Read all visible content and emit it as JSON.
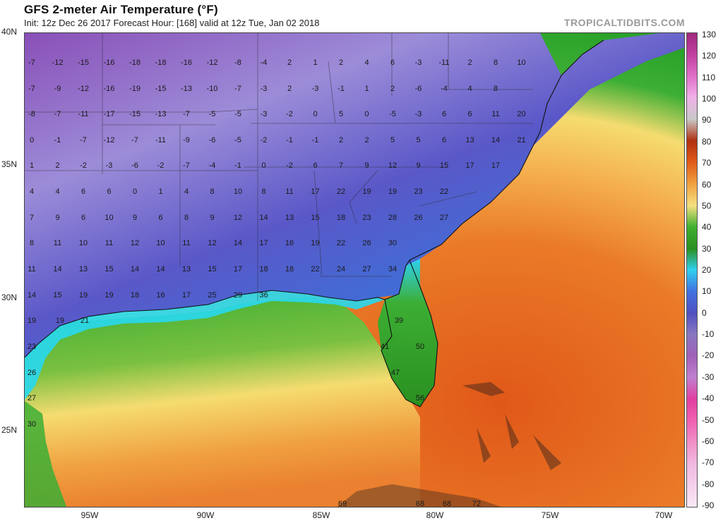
{
  "header": {
    "title": "GFS 2-meter Air Temperature (°F)",
    "subtitle": "Init: 12z Dec 26 2017   Forecast Hour: [168]   valid at 12z Tue, Jan 02 2018",
    "brand": "TROPICALTIDBITS.COM"
  },
  "axes": {
    "lat_labels": [
      "40N",
      "35N",
      "30N",
      "25N"
    ],
    "lon_labels": [
      "95W",
      "90W",
      "85W",
      "80W",
      "75W",
      "70W"
    ]
  },
  "colorbar": {
    "ticks": [
      "130",
      "120",
      "110",
      "100",
      "90",
      "80",
      "70",
      "60",
      "50",
      "40",
      "30",
      "20",
      "10",
      "0",
      "-10",
      "-20",
      "-30",
      "-40",
      "-50",
      "-60",
      "-70",
      "-80",
      "-90"
    ],
    "colors": [
      "#a0287e",
      "#c040a0",
      "#e070c8",
      "#f0b0e8",
      "#c8c8c8",
      "#b03010",
      "#e05a18",
      "#f0a040",
      "#f5e080",
      "#40b030",
      "#2a9020",
      "#30d0f0",
      "#4070e0",
      "#5050c0",
      "#8878c0",
      "#a060b8",
      "#c080d0",
      "#e040a0",
      "#f060b0",
      "#f090c8",
      "#f0b8e0",
      "#f4d0ea",
      "#f8e8f4"
    ]
  },
  "map_colors": {
    "ocean_warm": "#e05818",
    "ocean_orange": "#f09a38",
    "ocean_yellow": "#f5dc70",
    "ocean_green": "#3cae34",
    "coastal_cyan": "#28d8f0",
    "land_blue": "#3c70d8",
    "land_indigo": "#5a58c8",
    "land_lavender": "#9c8cd8",
    "land_purple": "#8a50b8",
    "land_pale": "#c0b8e8"
  },
  "temperature_grid": [
    [
      "-7",
      "-12",
      "-15",
      "-16",
      "-18",
      "-18",
      "-16",
      "-12",
      "-8",
      "-4",
      "2",
      "1",
      "2",
      "4",
      "6",
      "-3",
      "-11",
      "2",
      "8",
      "10"
    ],
    [
      "-7",
      "-9",
      "-12",
      "-16",
      "-19",
      "-15",
      "-13",
      "-10",
      "-7",
      "-3",
      "2",
      "-3",
      "-1",
      "1",
      "2",
      "-6",
      "-4",
      "4",
      "8"
    ],
    [
      "-8",
      "-7",
      "-11",
      "-17",
      "-15",
      "-13",
      "-7",
      "-5",
      "-5",
      "-3",
      "-2",
      "0",
      "5",
      "0",
      "-5",
      "-3",
      "6",
      "6",
      "11",
      "20"
    ],
    [
      "0",
      "-1",
      "-7",
      "-12",
      "-7",
      "-11",
      "-9",
      "-6",
      "-5",
      "-2",
      "-1",
      "-1",
      "2",
      "2",
      "5",
      "5",
      "6",
      "13",
      "14",
      "21"
    ],
    [
      "1",
      "2",
      "-2",
      "-3",
      "-6",
      "-2",
      "-7",
      "-4",
      "-1",
      "0",
      "-2",
      "6",
      "7",
      "9",
      "12",
      "9",
      "15",
      "17",
      "17"
    ],
    [
      "4",
      "4",
      "6",
      "6",
      "0",
      "1",
      "4",
      "8",
      "10",
      "8",
      "11",
      "17",
      "22",
      "19",
      "19",
      "23",
      "22"
    ],
    [
      "7",
      "9",
      "6",
      "10",
      "9",
      "6",
      "8",
      "9",
      "12",
      "14",
      "13",
      "15",
      "18",
      "23",
      "28",
      "26",
      "27"
    ],
    [
      "8",
      "11",
      "10",
      "11",
      "12",
      "10",
      "11",
      "12",
      "14",
      "17",
      "16",
      "19",
      "22",
      "26",
      "30"
    ],
    [
      "11",
      "14",
      "13",
      "15",
      "14",
      "14",
      "13",
      "15",
      "17",
      "18",
      "18",
      "22",
      "24",
      "27",
      "34"
    ],
    [
      "14",
      "15",
      "19",
      "19",
      "18",
      "16",
      "17",
      "25",
      "29",
      "36"
    ],
    [
      "19",
      "19",
      "21",
      "39"
    ],
    [
      "23",
      "41",
      "50"
    ],
    [
      "26",
      "47"
    ],
    [
      "27",
      "56"
    ],
    [
      "30"
    ],
    [
      "69",
      "68",
      "68",
      "72"
    ]
  ]
}
